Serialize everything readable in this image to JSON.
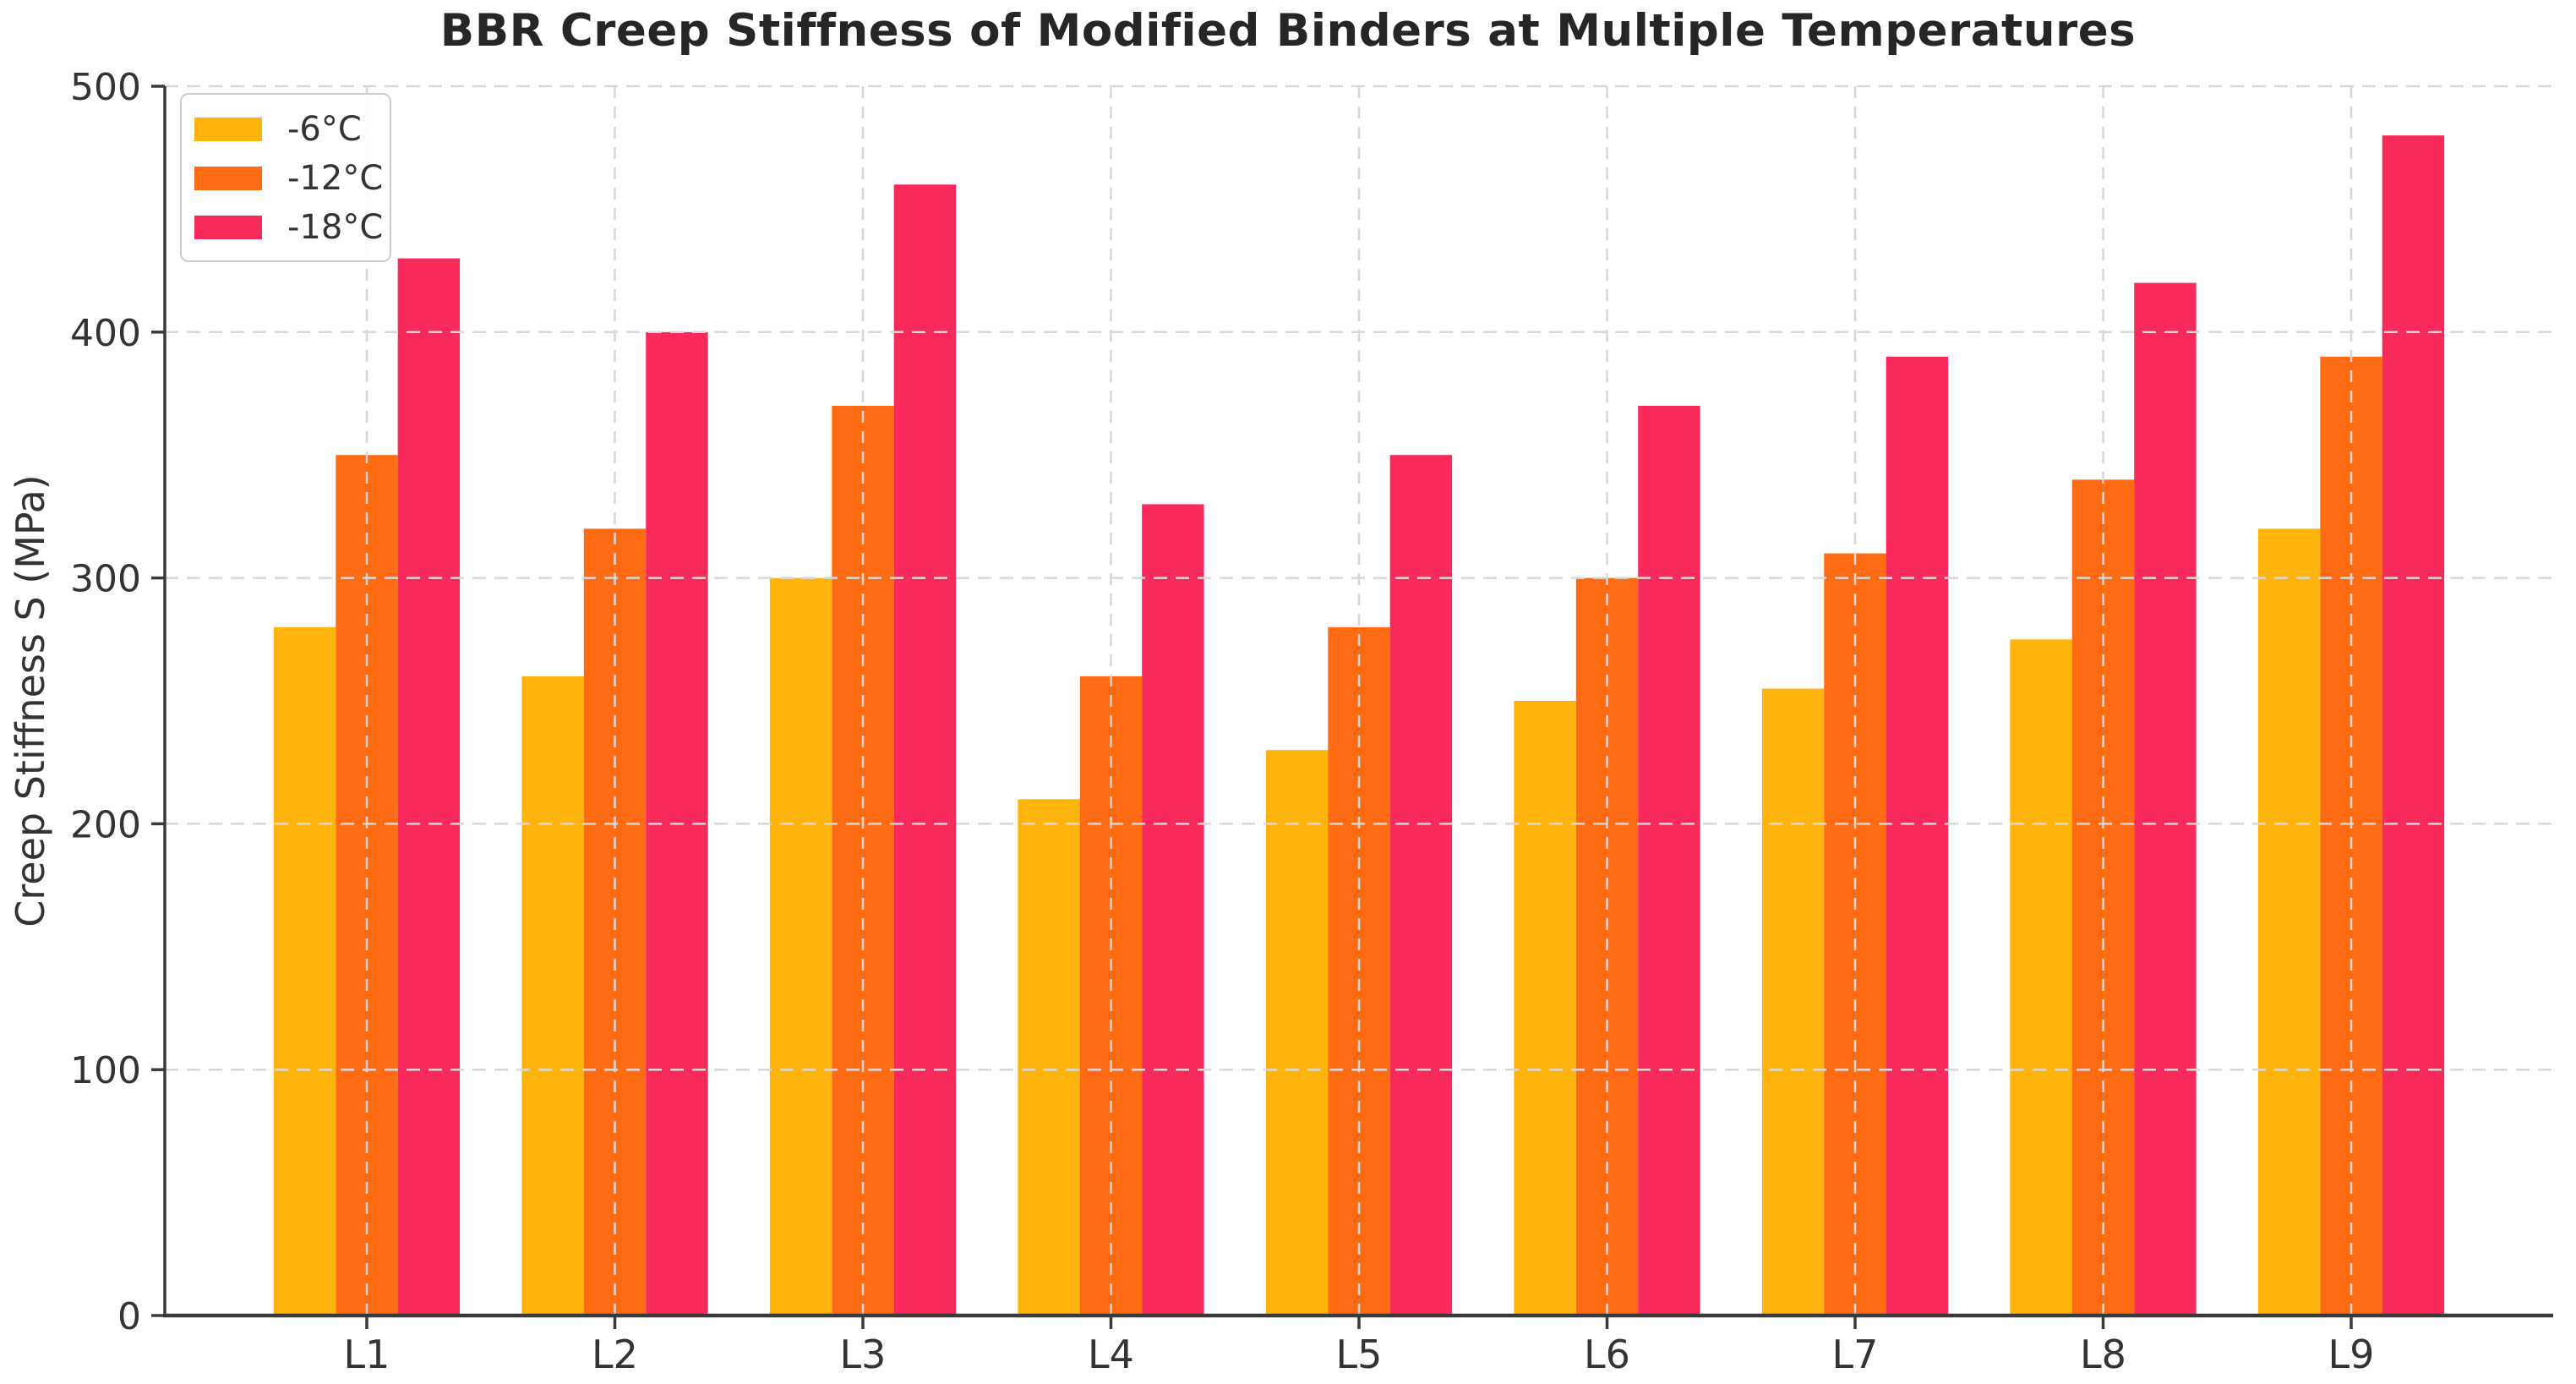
{
  "chart_data": {
    "type": "bar",
    "title": "BBR Creep Stiffness of Modified Binders at Multiple Temperatures",
    "xlabel": "",
    "ylabel": "Creep Stiffness S (MPa)",
    "categories": [
      "L1",
      "L2",
      "L3",
      "L4",
      "L5",
      "L6",
      "L7",
      "L8",
      "L9"
    ],
    "series": [
      {
        "name": "-6°C",
        "color": "#FFB30D",
        "values": [
          280,
          260,
          300,
          210,
          230,
          250,
          255,
          275,
          320
        ]
      },
      {
        "name": "-12°C",
        "color": "#FF6B12",
        "values": [
          350,
          320,
          370,
          260,
          280,
          300,
          310,
          340,
          390
        ]
      },
      {
        "name": "-18°C",
        "color": "#F8295B",
        "values": [
          430,
          400,
          460,
          330,
          350,
          370,
          390,
          420,
          480
        ]
      }
    ],
    "ylim": [
      0,
      500
    ],
    "yticks": [
      0,
      100,
      200,
      300,
      400,
      500
    ],
    "grid": true,
    "grid_style": "dashed",
    "legend_position": "upper left",
    "style": {
      "grid_color": "#d8d8d8",
      "spine_color": "#3a3a3a",
      "tick_label_color": "#333333",
      "title_color": "#262626",
      "background": "#ffffff"
    }
  }
}
